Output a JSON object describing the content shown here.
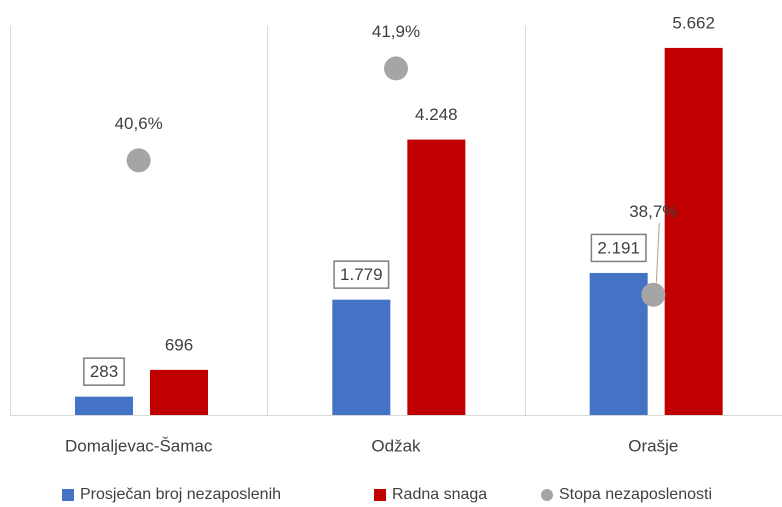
{
  "chart_data": {
    "type": "bar",
    "categories": [
      "Domaljevac-Šamac",
      "Odžak",
      "Orašje"
    ],
    "ylim": [
      0,
      6000
    ],
    "y2lim": [
      37,
      42.5
    ],
    "legend": "bottom",
    "series": [
      {
        "name": "Prosječan broj nezaposlenih",
        "color": "#4472c4",
        "values": [
          283,
          1779,
          2191
        ],
        "value_labels": [
          "283",
          "1.779",
          "2.191"
        ]
      },
      {
        "name": "Radna snaga",
        "color": "#c00000",
        "values": [
          696,
          4248,
          5662
        ],
        "value_labels": [
          "696",
          "4.248",
          "5.662"
        ]
      },
      {
        "name": "Stopa nezaposlenosti",
        "type": "scatter",
        "axis": "y2",
        "color": "#a5a5a5",
        "values": [
          40.6,
          41.9,
          38.7
        ],
        "value_labels": [
          "40,6%",
          "41,9%",
          "38,7%"
        ]
      }
    ]
  }
}
